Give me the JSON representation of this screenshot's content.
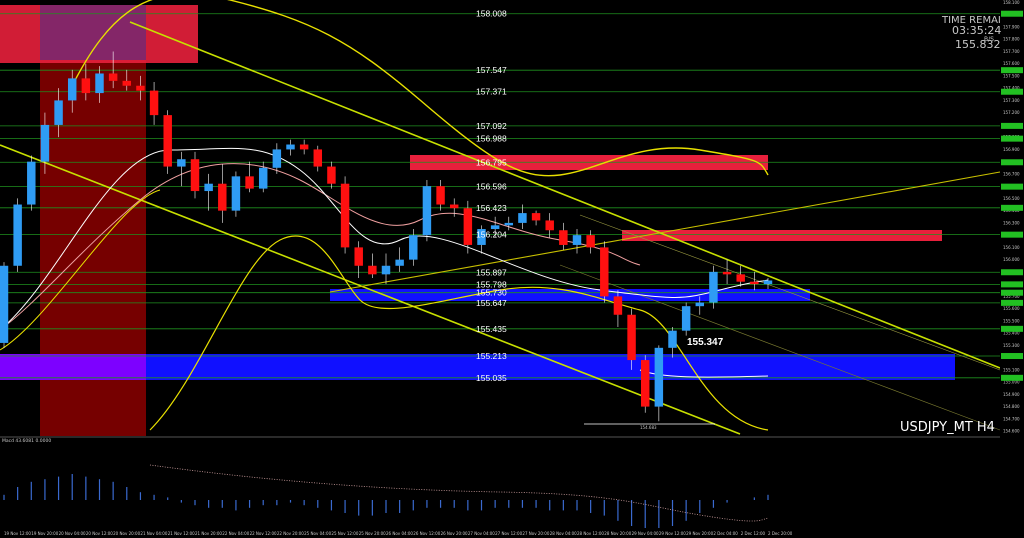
{
  "chart_data": {
    "type": "candlestick",
    "symbol": "USDJPY_MT H4",
    "hud": {
      "label": "TIME REMAI",
      "countdown": "03:35:24",
      "bid": "155.832",
      "small": "B/S"
    },
    "callout_price": "155.347",
    "low_label": "154.683",
    "indicator_label": "Macd 43.6081  0.0000",
    "ylim": [
      154.56,
      158.12
    ],
    "levels": [
      {
        "price": 158.008,
        "label": "158.008"
      },
      {
        "price": 157.547,
        "label": "157.547"
      },
      {
        "price": 157.371,
        "label": "157.371"
      },
      {
        "price": 157.092,
        "label": "157.092"
      },
      {
        "price": 156.988,
        "label": "156.988"
      },
      {
        "price": 156.795,
        "label": "156.795"
      },
      {
        "price": 156.596,
        "label": "156.596"
      },
      {
        "price": 156.423,
        "label": "156.423"
      },
      {
        "price": 156.204,
        "label": "156.204"
      },
      {
        "price": 155.897,
        "label": "155.897"
      },
      {
        "price": 155.798,
        "label": "155.798"
      },
      {
        "price": 155.73,
        "label": "155.730"
      },
      {
        "price": 155.647,
        "label": "155.647"
      },
      {
        "price": 155.435,
        "label": "155.435"
      },
      {
        "price": 155.213,
        "label": "155.213"
      },
      {
        "price": 155.035,
        "label": "155.035"
      }
    ],
    "candles": [
      [
        155.32,
        155.98,
        155.28,
        155.95
      ],
      [
        155.95,
        156.5,
        155.9,
        156.45
      ],
      [
        156.45,
        156.85,
        156.4,
        156.8
      ],
      [
        156.8,
        157.2,
        156.7,
        157.1
      ],
      [
        157.1,
        157.4,
        157.0,
        157.3
      ],
      [
        157.3,
        157.55,
        157.2,
        157.48
      ],
      [
        157.48,
        157.6,
        157.3,
        157.36
      ],
      [
        157.36,
        157.58,
        157.28,
        157.52
      ],
      [
        157.52,
        157.7,
        157.4,
        157.46
      ],
      [
        157.46,
        157.55,
        157.38,
        157.42
      ],
      [
        157.42,
        157.5,
        157.3,
        157.38
      ],
      [
        157.38,
        157.45,
        157.1,
        157.18
      ],
      [
        157.18,
        157.22,
        156.7,
        156.76
      ],
      [
        156.76,
        156.88,
        156.6,
        156.82
      ],
      [
        156.82,
        156.88,
        156.5,
        156.56
      ],
      [
        156.56,
        156.7,
        156.4,
        156.62
      ],
      [
        156.62,
        156.78,
        156.3,
        156.4
      ],
      [
        156.4,
        156.72,
        156.35,
        156.68
      ],
      [
        156.68,
        156.8,
        156.55,
        156.58
      ],
      [
        156.58,
        156.8,
        156.55,
        156.75
      ],
      [
        156.75,
        156.95,
        156.7,
        156.9
      ],
      [
        156.9,
        156.98,
        156.85,
        156.94
      ],
      [
        156.94,
        156.98,
        156.86,
        156.9
      ],
      [
        156.9,
        156.93,
        156.72,
        156.76
      ],
      [
        156.76,
        156.8,
        156.58,
        156.62
      ],
      [
        156.62,
        156.68,
        156.05,
        156.1
      ],
      [
        156.1,
        156.15,
        155.85,
        155.95
      ],
      [
        155.95,
        156.05,
        155.85,
        155.88
      ],
      [
        155.88,
        156.05,
        155.8,
        155.95
      ],
      [
        155.95,
        156.1,
        155.9,
        156.0
      ],
      [
        156.0,
        156.25,
        155.95,
        156.2
      ],
      [
        156.2,
        156.65,
        156.15,
        156.6
      ],
      [
        156.6,
        156.65,
        156.4,
        156.45
      ],
      [
        156.45,
        156.5,
        156.35,
        156.42
      ],
      [
        156.42,
        156.48,
        156.05,
        156.12
      ],
      [
        156.12,
        156.28,
        156.05,
        156.25
      ],
      [
        156.25,
        156.35,
        156.18,
        156.28
      ],
      [
        156.28,
        156.35,
        156.24,
        156.3
      ],
      [
        156.3,
        156.45,
        156.25,
        156.38
      ],
      [
        156.38,
        156.4,
        156.28,
        156.32
      ],
      [
        156.32,
        156.38,
        156.18,
        156.24
      ],
      [
        156.24,
        156.3,
        156.08,
        156.12
      ],
      [
        156.12,
        156.25,
        156.05,
        156.2
      ],
      [
        156.2,
        156.24,
        156.05,
        156.1
      ],
      [
        156.1,
        156.15,
        155.65,
        155.7
      ],
      [
        155.7,
        155.75,
        155.45,
        155.55
      ],
      [
        155.55,
        155.6,
        155.1,
        155.18
      ],
      [
        155.18,
        155.22,
        154.75,
        154.8
      ],
      [
        154.8,
        155.3,
        154.68,
        155.28
      ],
      [
        155.28,
        155.45,
        155.2,
        155.42
      ],
      [
        155.42,
        155.65,
        155.38,
        155.62
      ],
      [
        155.62,
        155.7,
        155.55,
        155.65
      ],
      [
        155.65,
        155.95,
        155.6,
        155.9
      ],
      [
        155.9,
        156.0,
        155.8,
        155.88
      ],
      [
        155.88,
        155.95,
        155.78,
        155.82
      ],
      [
        155.82,
        155.9,
        155.75,
        155.8
      ],
      [
        155.8,
        155.85,
        155.76,
        155.83
      ]
    ],
    "macd_hist": [
      0.02,
      0.05,
      0.07,
      0.08,
      0.09,
      0.1,
      0.09,
      0.08,
      0.07,
      0.05,
      0.03,
      0.02,
      0.01,
      -0.01,
      -0.02,
      -0.03,
      -0.03,
      -0.04,
      -0.03,
      -0.02,
      -0.02,
      -0.01,
      -0.02,
      -0.03,
      -0.04,
      -0.05,
      -0.06,
      -0.06,
      -0.05,
      -0.05,
      -0.04,
      -0.03,
      -0.03,
      -0.03,
      -0.04,
      -0.04,
      -0.03,
      -0.03,
      -0.03,
      -0.03,
      -0.04,
      -0.04,
      -0.04,
      -0.05,
      -0.06,
      -0.08,
      -0.1,
      -0.13,
      -0.12,
      -0.1,
      -0.08,
      -0.05,
      -0.03,
      -0.01,
      0.0,
      0.01,
      0.02
    ],
    "time_labels": [
      "19 Nov 12:00",
      "19 Nov 20:00",
      "20 Nov 04:00",
      "20 Nov 12:00",
      "20 Nov 20:00",
      "21 Nov 04:00",
      "21 Nov 12:00",
      "21 Nov 20:00",
      "22 Nov 04:00",
      "22 Nov 12:00",
      "22 Nov 20:00",
      "25 Nov 04:00",
      "25 Nov 12:00",
      "25 Nov 20:00",
      "26 Nov 04:00",
      "26 Nov 12:00",
      "26 Nov 20:00",
      "27 Nov 04:00",
      "27 Nov 12:00",
      "27 Nov 20:00",
      "28 Nov 04:00",
      "28 Nov 12:00",
      "28 Nov 20:00",
      "29 Nov 04:00",
      "29 Nov 12:00",
      "29 Nov 20:00",
      "2 Dec 04:00",
      "2 Dec 12:00",
      "2 Dec 20:00"
    ],
    "colors": {
      "up": "#2f9cf4",
      "down": "#ff1010",
      "level_line": "#1f8f1f",
      "channel": "#c8e000",
      "zone_red": "#e8203c",
      "zone_blue": "#1010ff"
    }
  }
}
